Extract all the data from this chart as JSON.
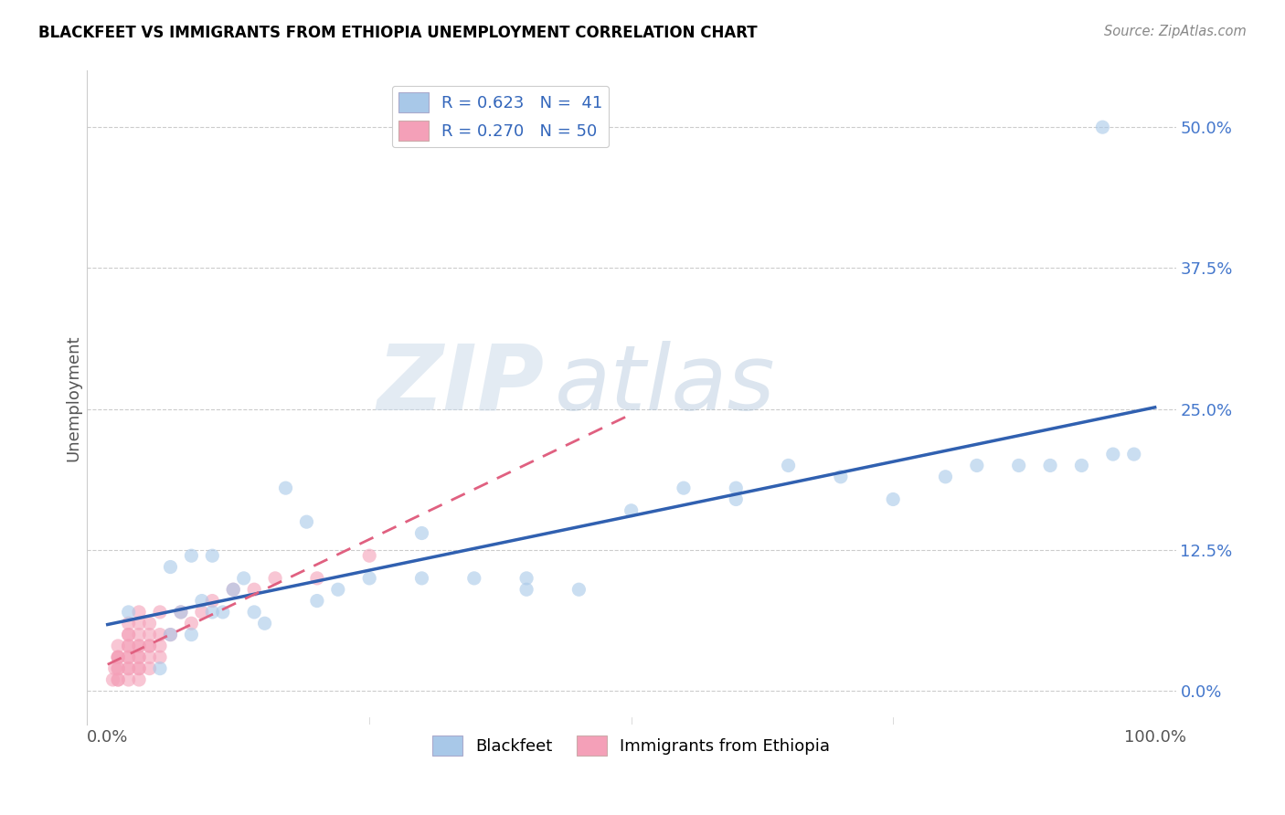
{
  "title": "BLACKFEET VS IMMIGRANTS FROM ETHIOPIA UNEMPLOYMENT CORRELATION CHART",
  "source": "Source: ZipAtlas.com",
  "ylabel": "Unemployment",
  "xlabel": "",
  "xlim": [
    -0.02,
    1.02
  ],
  "ylim": [
    -0.03,
    0.55
  ],
  "yticks": [
    0.0,
    0.125,
    0.25,
    0.375,
    0.5
  ],
  "ytick_labels": [
    "0.0%",
    "12.5%",
    "25.0%",
    "37.5%",
    "50.0%"
  ],
  "xticks": [
    0.0,
    1.0
  ],
  "xtick_labels": [
    "0.0%",
    "100.0%"
  ],
  "legend_r1": "R = 0.623",
  "legend_n1": "N =  41",
  "legend_r2": "R = 0.270",
  "legend_n2": "N = 50",
  "color_blue": "#a8c8e8",
  "color_pink": "#f4a0b8",
  "trendline_blue": "#3060b0",
  "trendline_pink": "#e06080",
  "watermark_zip": "ZIP",
  "watermark_atlas": "atlas",
  "blue_points_x": [
    0.02,
    0.05,
    0.06,
    0.07,
    0.08,
    0.09,
    0.1,
    0.11,
    0.12,
    0.13,
    0.14,
    0.15,
    0.17,
    0.19,
    0.22,
    0.25,
    0.3,
    0.35,
    0.4,
    0.45,
    0.5,
    0.55,
    0.6,
    0.65,
    0.7,
    0.75,
    0.8,
    0.83,
    0.87,
    0.9,
    0.93,
    0.96,
    0.98,
    0.6,
    0.4,
    0.3,
    0.2,
    0.1,
    0.08,
    0.06,
    0.95
  ],
  "blue_points_y": [
    0.07,
    0.02,
    0.05,
    0.07,
    0.05,
    0.08,
    0.07,
    0.07,
    0.09,
    0.1,
    0.07,
    0.06,
    0.18,
    0.15,
    0.09,
    0.1,
    0.14,
    0.1,
    0.09,
    0.09,
    0.16,
    0.18,
    0.18,
    0.2,
    0.19,
    0.17,
    0.19,
    0.2,
    0.2,
    0.2,
    0.2,
    0.21,
    0.21,
    0.17,
    0.1,
    0.1,
    0.08,
    0.12,
    0.12,
    0.11,
    0.5
  ],
  "pink_points_x": [
    0.005,
    0.007,
    0.01,
    0.01,
    0.01,
    0.01,
    0.01,
    0.01,
    0.01,
    0.01,
    0.02,
    0.02,
    0.02,
    0.02,
    0.02,
    0.02,
    0.02,
    0.02,
    0.02,
    0.02,
    0.03,
    0.03,
    0.03,
    0.03,
    0.03,
    0.03,
    0.03,
    0.03,
    0.03,
    0.03,
    0.04,
    0.04,
    0.04,
    0.04,
    0.04,
    0.04,
    0.05,
    0.05,
    0.05,
    0.05,
    0.06,
    0.07,
    0.08,
    0.09,
    0.1,
    0.12,
    0.14,
    0.16,
    0.2,
    0.25
  ],
  "pink_points_y": [
    0.01,
    0.02,
    0.01,
    0.01,
    0.02,
    0.02,
    0.03,
    0.03,
    0.03,
    0.04,
    0.01,
    0.02,
    0.02,
    0.03,
    0.03,
    0.04,
    0.04,
    0.05,
    0.05,
    0.06,
    0.01,
    0.02,
    0.02,
    0.03,
    0.03,
    0.04,
    0.04,
    0.05,
    0.06,
    0.07,
    0.02,
    0.03,
    0.04,
    0.04,
    0.05,
    0.06,
    0.03,
    0.04,
    0.05,
    0.07,
    0.05,
    0.07,
    0.06,
    0.07,
    0.08,
    0.09,
    0.09,
    0.1,
    0.1,
    0.12
  ]
}
